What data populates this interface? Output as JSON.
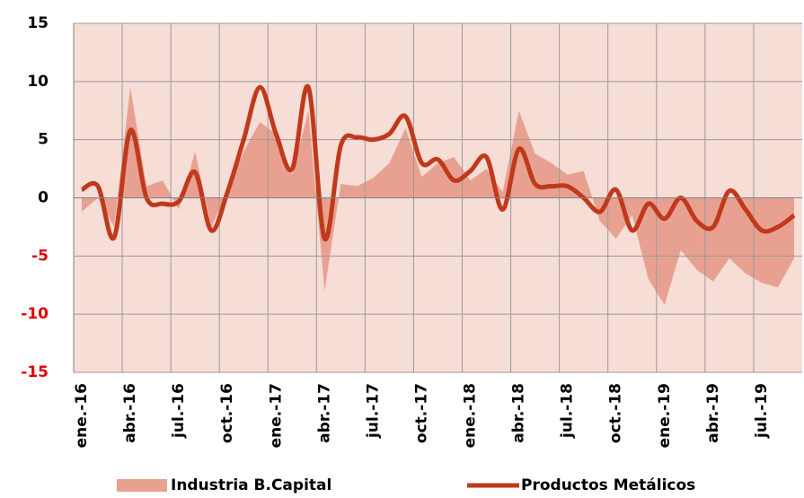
{
  "chart_data": {
    "type": "area_line",
    "categories": [
      "ene.-16",
      null,
      null,
      "abr.-16",
      null,
      null,
      "jul.-16",
      null,
      null,
      "oct.-16",
      null,
      null,
      "ene.-17",
      null,
      null,
      "abr.-17",
      null,
      null,
      "jul.-17",
      null,
      null,
      "oct.-17",
      null,
      null,
      "ene.-18",
      null,
      null,
      "abr.-18",
      null,
      null,
      "jul.-18",
      null,
      null,
      "oct.-18",
      null,
      null,
      "ene.-19",
      null,
      null,
      "abr.-19",
      null,
      null,
      "jul.-19",
      null,
      null
    ],
    "series": [
      {
        "name": "Industria B.Capital",
        "color": "#e8a191",
        "kind": "area",
        "values": [
          -1.2,
          0,
          -2.5,
          9.5,
          1,
          1.5,
          -1,
          4,
          -2.5,
          0.5,
          4,
          6.5,
          5.5,
          2,
          7.5,
          -8,
          1.2,
          1,
          1.7,
          3,
          6,
          1.8,
          3,
          3.5,
          1.5,
          2.5,
          0.5,
          7.5,
          3.8,
          3,
          2,
          2.3,
          -2,
          -3.5,
          -1.5,
          -7,
          -9.2,
          -4.5,
          -6.2,
          -7.2,
          -5.2,
          -6.5,
          -7.3,
          -7.7,
          -5.2
        ]
      },
      {
        "name": "Productos Metálicos",
        "color": "#c0391b",
        "kind": "line",
        "values": [
          0.7,
          1,
          -3.4,
          5.8,
          0,
          -0.5,
          -0.3,
          2.2,
          -2.8,
          0.5,
          5,
          9.5,
          5.5,
          2.5,
          9.5,
          -3.5,
          4.5,
          5.2,
          5,
          5.5,
          7,
          3,
          3.3,
          1.5,
          2.3,
          3.5,
          -1,
          4.2,
          1.2,
          1,
          1,
          0,
          -1.2,
          0.7,
          -2.8,
          -0.5,
          -1.8,
          0,
          -2,
          -2.5,
          0.6,
          -1,
          -2.8,
          -2.5,
          -1.5
        ]
      }
    ],
    "ylim": [
      -15,
      15
    ],
    "yticks": [
      -15,
      -10,
      -5,
      0,
      5,
      10,
      15
    ],
    "negative_tick_color": "#e00000",
    "grid": true,
    "legend": "bottom"
  }
}
